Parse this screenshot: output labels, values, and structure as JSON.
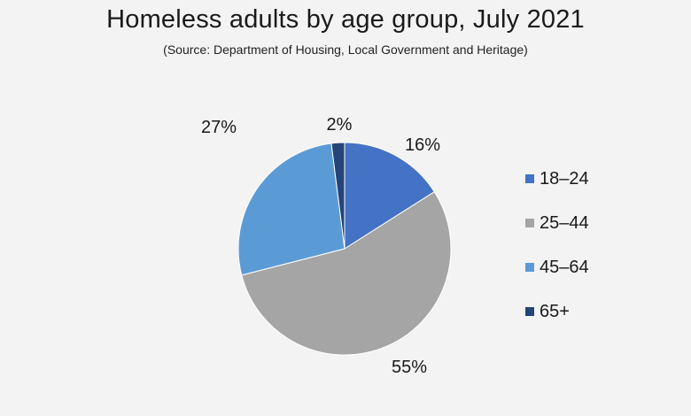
{
  "title": "Homeless adults by age group, July 2021",
  "subtitle": "(Source: Department of Housing, Local Government and Heritage)",
  "chart_data": {
    "type": "pie",
    "title": "Homeless adults by age group, July 2021",
    "subtitle": "(Source: Department of Housing, Local Government and Heritage)",
    "categories": [
      "18–24",
      "25–44",
      "45–64",
      "65+"
    ],
    "values": [
      16,
      55,
      27,
      2
    ],
    "labels": [
      "16%",
      "55%",
      "27%",
      "2%"
    ],
    "colors": [
      "#4472c4",
      "#a5a5a5",
      "#5b9bd5",
      "#264478"
    ],
    "legend_position": "right",
    "start_angle": "12 o'clock, clockwise"
  }
}
